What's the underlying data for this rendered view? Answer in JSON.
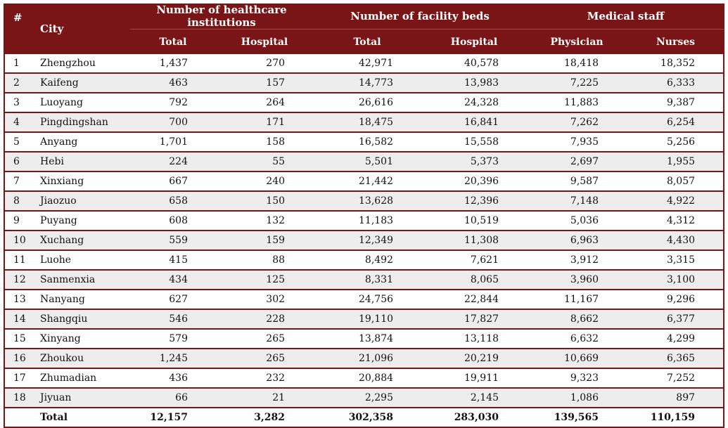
{
  "header": {
    "index": "#",
    "city": "City",
    "groups": {
      "institutions": "Number of healthcare institutions",
      "beds": "Number of facility beds",
      "staff": "Medical staff"
    },
    "sub": {
      "inst_total": "Total",
      "inst_hospital": "Hospital",
      "beds_total": "Total",
      "beds_hospital": "Hospital",
      "physician": "Physician",
      "nurses": "Nurses"
    }
  },
  "rows": [
    {
      "idx": "1",
      "city": "Zhengzhou",
      "inst_total": "1,437",
      "inst_hospital": "270",
      "beds_total": "42,971",
      "beds_hospital": "40,578",
      "physician": "18,418",
      "nurses": "18,352"
    },
    {
      "idx": "2",
      "city": "Kaifeng",
      "inst_total": "463",
      "inst_hospital": "157",
      "beds_total": "14,773",
      "beds_hospital": "13,983",
      "physician": "7,225",
      "nurses": "6,333"
    },
    {
      "idx": "3",
      "city": "Luoyang",
      "inst_total": "792",
      "inst_hospital": "264",
      "beds_total": "26,616",
      "beds_hospital": "24,328",
      "physician": "11,883",
      "nurses": "9,387"
    },
    {
      "idx": "4",
      "city": "Pingdingshan",
      "inst_total": "700",
      "inst_hospital": "171",
      "beds_total": "18,475",
      "beds_hospital": "16,841",
      "physician": "7,262",
      "nurses": "6,254"
    },
    {
      "idx": "5",
      "city": "Anyang",
      "inst_total": "1,701",
      "inst_hospital": "158",
      "beds_total": "16,582",
      "beds_hospital": "15,558",
      "physician": "7,935",
      "nurses": "5,256"
    },
    {
      "idx": "6",
      "city": "Hebi",
      "inst_total": "224",
      "inst_hospital": "55",
      "beds_total": "5,501",
      "beds_hospital": "5,373",
      "physician": "2,697",
      "nurses": "1,955"
    },
    {
      "idx": "7",
      "city": "Xinxiang",
      "inst_total": "667",
      "inst_hospital": "240",
      "beds_total": "21,442",
      "beds_hospital": "20,396",
      "physician": "9,587",
      "nurses": "8,057"
    },
    {
      "idx": "8",
      "city": "Jiaozuo",
      "inst_total": "658",
      "inst_hospital": "150",
      "beds_total": "13,628",
      "beds_hospital": "12,396",
      "physician": "7,148",
      "nurses": "4,922"
    },
    {
      "idx": "9",
      "city": "Puyang",
      "inst_total": "608",
      "inst_hospital": "132",
      "beds_total": "11,183",
      "beds_hospital": "10,519",
      "physician": "5,036",
      "nurses": "4,312"
    },
    {
      "idx": "10",
      "city": "Xuchang",
      "inst_total": "559",
      "inst_hospital": "159",
      "beds_total": "12,349",
      "beds_hospital": "11,308",
      "physician": "6,963",
      "nurses": "4,430"
    },
    {
      "idx": "11",
      "city": "Luohe",
      "inst_total": "415",
      "inst_hospital": "88",
      "beds_total": "8,492",
      "beds_hospital": "7,621",
      "physician": "3,912",
      "nurses": "3,315"
    },
    {
      "idx": "12",
      "city": "Sanmenxia",
      "inst_total": "434",
      "inst_hospital": "125",
      "beds_total": "8,331",
      "beds_hospital": "8,065",
      "physician": "3,960",
      "nurses": "3,100"
    },
    {
      "idx": "13",
      "city": "Nanyang",
      "inst_total": "627",
      "inst_hospital": "302",
      "beds_total": "24,756",
      "beds_hospital": "22,844",
      "physician": "11,167",
      "nurses": "9,296"
    },
    {
      "idx": "14",
      "city": "Shangqiu",
      "inst_total": "546",
      "inst_hospital": "228",
      "beds_total": "19,110",
      "beds_hospital": "17,827",
      "physician": "8,662",
      "nurses": "6,377"
    },
    {
      "idx": "15",
      "city": "Xinyang",
      "inst_total": "579",
      "inst_hospital": "265",
      "beds_total": "13,874",
      "beds_hospital": "13,118",
      "physician": "6,632",
      "nurses": "4,299"
    },
    {
      "idx": "16",
      "city": "Zhoukou",
      "inst_total": "1,245",
      "inst_hospital": "265",
      "beds_total": "21,096",
      "beds_hospital": "20,219",
      "physician": "10,669",
      "nurses": "6,365"
    },
    {
      "idx": "17",
      "city": "Zhumadian",
      "inst_total": "436",
      "inst_hospital": "232",
      "beds_total": "20,884",
      "beds_hospital": "19,911",
      "physician": "9,323",
      "nurses": "7,252"
    },
    {
      "idx": "18",
      "city": "Jiyuan",
      "inst_total": "66",
      "inst_hospital": "21",
      "beds_total": "2,295",
      "beds_hospital": "2,145",
      "physician": "1,086",
      "nurses": "897"
    }
  ],
  "total": {
    "label": "Total",
    "inst_total": "12,157",
    "inst_hospital": "3,282",
    "beds_total": "302,358",
    "beds_hospital": "283,030",
    "physician": "139,565",
    "nurses": "110,159"
  },
  "colors": {
    "header_bg": "#7a1517",
    "stripe": "#ededed"
  }
}
